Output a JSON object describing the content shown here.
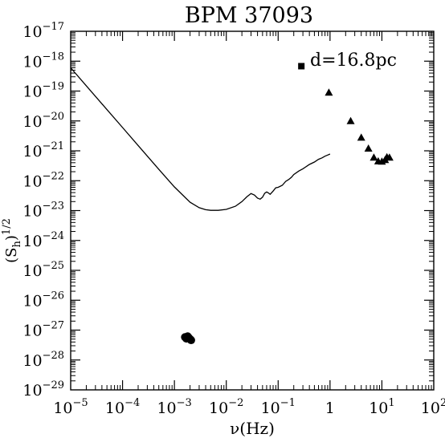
{
  "chart_data": {
    "type": "scatter",
    "title": "BPM 37093",
    "xlabel": "ν(Hz)",
    "ylabel": "(S_h)^1/2",
    "annotation": "d=16.8pc",
    "x_scale": "log",
    "y_scale": "log",
    "xlim": [
      1e-05,
      100
    ],
    "ylim": [
      1e-29,
      1e-17
    ],
    "grid": false,
    "x_ticks": [
      {
        "base": "10",
        "exp": "−5"
      },
      {
        "base": "10",
        "exp": "−4"
      },
      {
        "base": "10",
        "exp": "−3"
      },
      {
        "base": "10",
        "exp": "−2"
      },
      {
        "base": "10",
        "exp": "−1"
      },
      {
        "base": "1",
        "exp": ""
      },
      {
        "base": "10",
        "exp": "1"
      },
      {
        "base": "10",
        "exp": "2"
      }
    ],
    "y_ticks": [
      {
        "base": "10",
        "exp": "−17"
      },
      {
        "base": "10",
        "exp": "−18"
      },
      {
        "base": "10",
        "exp": "−19"
      },
      {
        "base": "10",
        "exp": "−20"
      },
      {
        "base": "10",
        "exp": "−21"
      },
      {
        "base": "10",
        "exp": "−22"
      },
      {
        "base": "10",
        "exp": "−23"
      },
      {
        "base": "10",
        "exp": "−24"
      },
      {
        "base": "10",
        "exp": "−25"
      },
      {
        "base": "10",
        "exp": "−26"
      },
      {
        "base": "10",
        "exp": "−27"
      },
      {
        "base": "10",
        "exp": "−28"
      },
      {
        "base": "10",
        "exp": "−29"
      }
    ],
    "series": [
      {
        "marker": "line",
        "points": [
          [
            1e-05,
            6e-19
          ],
          [
            2e-05,
            1.5e-19
          ],
          [
            5e-05,
            2.4e-20
          ],
          [
            0.0001,
            6e-21
          ],
          [
            0.0002,
            1.5e-21
          ],
          [
            0.0005,
            2.4e-22
          ],
          [
            0.001,
            6.2e-23
          ],
          [
            0.002,
            1.9e-23
          ],
          [
            0.003,
            1.25e-23
          ],
          [
            0.004,
            1.07e-23
          ],
          [
            0.005,
            1.02e-23
          ],
          [
            0.007,
            1.02e-23
          ],
          [
            0.01,
            1.1e-23
          ],
          [
            0.015,
            1.4e-23
          ],
          [
            0.02,
            2e-23
          ],
          [
            0.025,
            2.9e-23
          ],
          [
            0.03,
            3.7e-23
          ],
          [
            0.035,
            3.3e-23
          ],
          [
            0.04,
            2.6e-23
          ],
          [
            0.045,
            2.4e-23
          ],
          [
            0.05,
            2.8e-23
          ],
          [
            0.055,
            3.8e-23
          ],
          [
            0.06,
            4.2e-23
          ],
          [
            0.065,
            3.9e-23
          ],
          [
            0.07,
            3.5e-23
          ],
          [
            0.08,
            4.5e-23
          ],
          [
            0.09,
            5.8e-23
          ],
          [
            0.1,
            6e-23
          ],
          [
            0.12,
            7e-23
          ],
          [
            0.14,
            9.5e-23
          ],
          [
            0.16,
            1.1e-22
          ],
          [
            0.18,
            1.3e-22
          ],
          [
            0.2,
            1.6e-22
          ],
          [
            0.25,
            2.1e-22
          ],
          [
            0.3,
            2.5e-22
          ],
          [
            0.4,
            3.5e-22
          ],
          [
            0.5,
            4.2e-22
          ],
          [
            0.6,
            5.2e-22
          ],
          [
            0.7,
            5.8e-22
          ],
          [
            0.8,
            6.6e-22
          ],
          [
            0.9,
            7.2e-22
          ],
          [
            1,
            7.8e-22
          ]
        ]
      },
      {
        "marker": "square",
        "points": [
          [
            0.28,
            6.8e-19
          ]
        ]
      },
      {
        "marker": "triangle",
        "points": [
          [
            0.95,
            9e-20
          ],
          [
            2.5,
            1e-20
          ],
          [
            4,
            2.8e-21
          ],
          [
            5.5,
            1.2e-21
          ],
          [
            7,
            6e-22
          ],
          [
            8.5,
            4.5e-22
          ],
          [
            10,
            4.4e-22
          ],
          [
            11.5,
            5e-22
          ],
          [
            12.5,
            6.2e-22
          ],
          [
            14,
            6e-22
          ]
        ]
      },
      {
        "marker": "circle",
        "points": [
          [
            0.0016,
            5.8e-28
          ],
          [
            0.0017,
            5.2e-28
          ],
          [
            0.0018,
            6.2e-28
          ],
          [
            0.0019,
            5.5e-28
          ],
          [
            0.002,
            5e-28
          ],
          [
            0.0021,
            4.6e-28
          ]
        ]
      }
    ]
  }
}
